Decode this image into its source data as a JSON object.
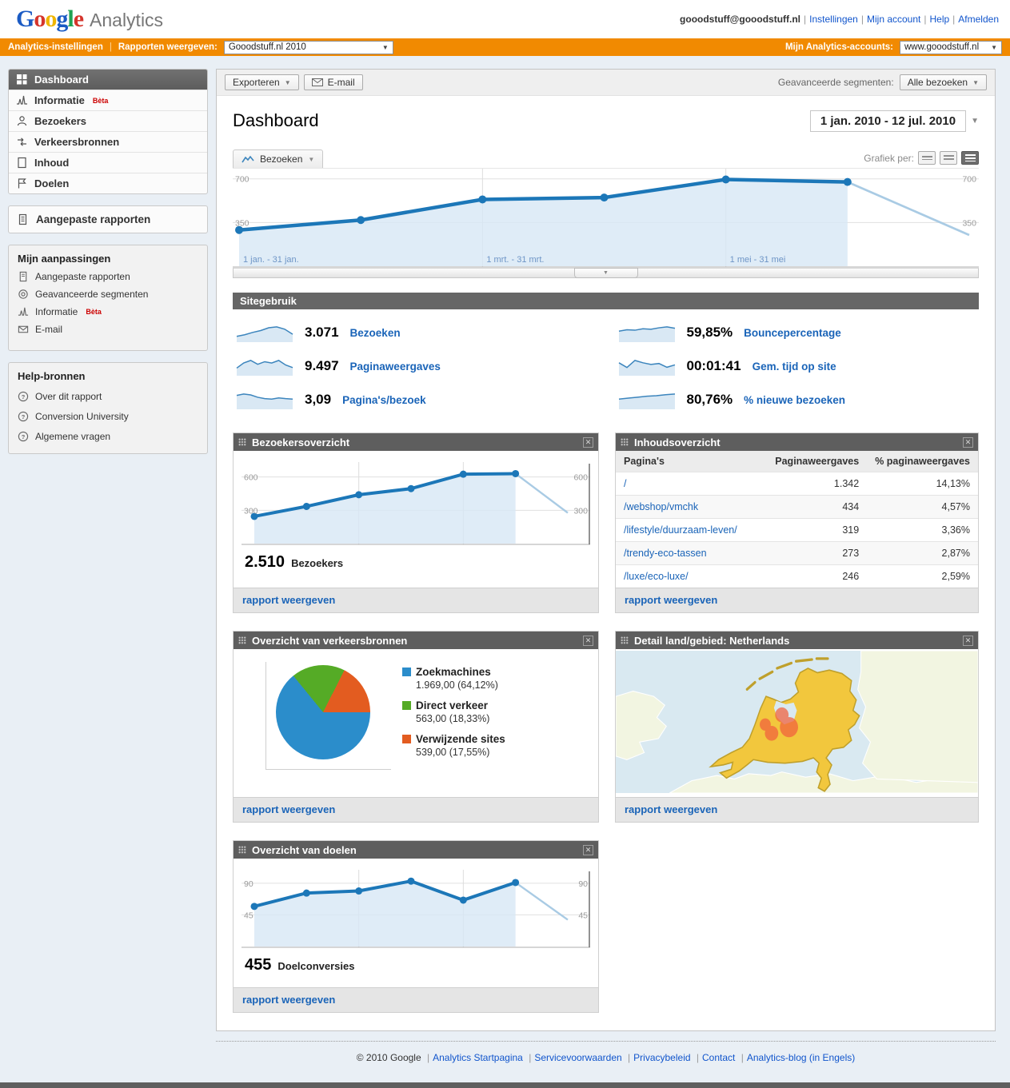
{
  "theme": {
    "orange": "#F18A01",
    "link_blue": "#1A64B8",
    "top_link_blue": "#1155CC",
    "chart_line_blue": "#1C77B8",
    "chart_fill_blue": "#D7E7F5",
    "partial_line_blue": "#A9CBE4",
    "widget_header_gray": "#5E5E5E",
    "map_country_yellow": "#F2C73D",
    "map_marker_orange": "#F1603D"
  },
  "header": {
    "logo": {
      "letters": [
        {
          "ch": "G",
          "color": "#1B5BC4"
        },
        {
          "ch": "o",
          "color": "#D5352C"
        },
        {
          "ch": "o",
          "color": "#EFB500"
        },
        {
          "ch": "g",
          "color": "#1B5BC4"
        },
        {
          "ch": "l",
          "color": "#1FA353"
        },
        {
          "ch": "e",
          "color": "#D5352C"
        }
      ],
      "suffix": "Analytics"
    },
    "email": "gooodstuff@gooodstuff.nl",
    "links": [
      "Instellingen",
      "Mijn account",
      "Help",
      "Afmelden"
    ]
  },
  "orange_bar": {
    "settings_link": "Analytics-instellingen",
    "reports_label": "Rapporten weergeven:",
    "reports_value": "Gooodstuff.nl 2010",
    "accounts_label": "Mijn Analytics-accounts:",
    "accounts_value": "www.gooodstuff.nl"
  },
  "sidebar": {
    "nav": [
      {
        "label": "Dashboard"
      },
      {
        "label": "Informatie",
        "badge": "Bèta"
      },
      {
        "label": "Bezoekers"
      },
      {
        "label": "Verkeersbronnen"
      },
      {
        "label": "Inhoud"
      },
      {
        "label": "Doelen"
      }
    ],
    "custom_reports": "Aangepaste rapporten",
    "customizations": {
      "title": "Mijn aanpassingen",
      "items": [
        {
          "label": "Aangepaste rapporten"
        },
        {
          "label": "Geavanceerde segmenten"
        },
        {
          "label": "Informatie",
          "badge": "Bèta"
        },
        {
          "label": "E-mail"
        }
      ]
    },
    "help": {
      "title": "Help-bronnen",
      "items": [
        "Over dit rapport",
        "Conversion University",
        "Algemene vragen"
      ]
    }
  },
  "toolbar": {
    "export_label": "Exporteren",
    "email_label": "E-mail",
    "segments_label": "Geavanceerde segmenten:",
    "segments_value": "Alle bezoeken"
  },
  "page": {
    "title": "Dashboard",
    "date_range": "1 jan. 2010 - 12 jul. 2010",
    "graph_by_label": "Grafiek per:",
    "metric_tab": "Bezoeken"
  },
  "site_usage": {
    "title": "Sitegebruik",
    "metrics": [
      {
        "value": "3.071",
        "label": "Bezoeken",
        "spark": "spark-visits"
      },
      {
        "value": "59,85%",
        "label": "Bouncepercentage",
        "spark": "spark-bounce"
      },
      {
        "value": "9.497",
        "label": "Paginaweergaves",
        "spark": "spark-pageviews"
      },
      {
        "value": "00:01:41",
        "label": "Gem. tijd op site",
        "spark": "spark-time"
      },
      {
        "value": "3,09",
        "label": "Pagina's/bezoek",
        "spark": "spark-pages"
      },
      {
        "value": "80,76%",
        "label": "% nieuwe bezoeken",
        "spark": "spark-new"
      }
    ]
  },
  "widgets": {
    "report_link": "rapport weergeven",
    "visitors": {
      "title": "Bezoekersoverzicht",
      "total": "2.510",
      "total_label": "Bezoekers"
    },
    "content": {
      "title": "Inhoudsoverzicht",
      "columns": [
        "Pagina's",
        "Paginaweergaves",
        "% paginaweergaves"
      ],
      "rows": [
        {
          "page": "/",
          "views": "1.342",
          "pct": "14,13%"
        },
        {
          "page": "/webshop/vmchk",
          "views": "434",
          "pct": "4,57%"
        },
        {
          "page": "/lifestyle/duurzaam-leven/",
          "views": "319",
          "pct": "3,36%"
        },
        {
          "page": "/trendy-eco-tassen",
          "views": "273",
          "pct": "2,87%"
        },
        {
          "page": "/luxe/eco-luxe/",
          "views": "246",
          "pct": "2,59%"
        }
      ]
    },
    "traffic": {
      "title": "Overzicht van verkeersbronnen"
    },
    "map": {
      "title": "Detail land/gebied: Netherlands"
    },
    "goals": {
      "title": "Overzicht van doelen",
      "total": "455",
      "total_label": "Doelconversies"
    }
  },
  "chart_data": [
    {
      "id": "visits-trend",
      "type": "line",
      "title": "Bezoeken",
      "values": [
        290,
        370,
        535,
        550,
        695,
        675
      ],
      "partial": 250,
      "ymax": 775,
      "gridlines": [
        350,
        700
      ],
      "vline_slots": [
        2,
        4
      ],
      "x_labels": [
        "1 jan. - 31 jan.",
        "1 mrt. - 31 mrt.",
        "1 mei - 31 mei"
      ],
      "x_label_slots": [
        0,
        2,
        4
      ],
      "xlabel": "",
      "ylabel": "Bezoeken",
      "ylim": [
        0,
        775
      ],
      "grid": "on",
      "legend": "none"
    },
    {
      "id": "spark-visits",
      "type": "sparkline",
      "values": [
        2.5,
        3.2,
        4.2,
        5.0,
        6.2,
        6.6,
        5.6,
        3.4
      ]
    },
    {
      "id": "spark-pageviews",
      "type": "sparkline",
      "values": [
        3.0,
        5.0,
        6.0,
        4.5,
        5.5,
        5.0,
        6.0,
        4.2,
        3.2
      ]
    },
    {
      "id": "spark-pages",
      "type": "sparkline",
      "values": [
        6.0,
        6.6,
        6.2,
        5.2,
        4.6,
        4.4,
        4.9,
        4.6,
        4.4
      ]
    },
    {
      "id": "spark-bounce",
      "type": "sparkline",
      "values": [
        4.6,
        5.2,
        5.0,
        5.6,
        5.4,
        6.0,
        6.4,
        5.8
      ]
    },
    {
      "id": "spark-time",
      "type": "sparkline",
      "values": [
        5.5,
        3.5,
        6.5,
        5.5,
        4.8,
        5.2,
        3.6,
        4.6
      ]
    },
    {
      "id": "spark-new",
      "type": "sparkline",
      "values": [
        4.2,
        4.6,
        5.0,
        5.4,
        5.6,
        6.0,
        6.3
      ]
    },
    {
      "id": "visitors-overview",
      "type": "line",
      "title": "Bezoekersoverzicht",
      "values": [
        245,
        335,
        440,
        495,
        625,
        630
      ],
      "partial": 277,
      "ymax": 727,
      "gridlines": [
        300,
        600
      ],
      "vline_slots": [
        2,
        4
      ],
      "ylim": [
        0,
        727
      ],
      "grid": "on"
    },
    {
      "id": "traffic-pie",
      "type": "pie",
      "title": "Overzicht van verkeersbronnen",
      "slices": [
        {
          "label": "Zoekmachines",
          "value": 64.12,
          "value_text": "1.969,00 (64,12%)",
          "color": "#2B8DCB"
        },
        {
          "label": "Direct verkeer",
          "value": 18.33,
          "value_text": "563,00 (18,33%)",
          "color": "#55AB26"
        },
        {
          "label": "Verwijzende sites",
          "value": 17.55,
          "value_text": "539,00 (17,55%)",
          "color": "#E35C20"
        }
      ]
    },
    {
      "id": "goals-overview",
      "type": "line",
      "title": "Overzicht van doelen",
      "values": [
        57,
        76,
        79,
        93,
        66,
        91
      ],
      "partial": 38,
      "ymax": 108,
      "gridlines": [
        45,
        90
      ],
      "vline_slots": [
        2,
        4
      ],
      "ylim": [
        0,
        108
      ],
      "grid": "on"
    }
  ],
  "footer": {
    "copyright": "© 2010 Google",
    "links": [
      "Analytics Startpagina",
      "Servicevoorwaarden",
      "Privacybeleid",
      "Contact",
      "Analytics-blog (in Engels)"
    ]
  }
}
